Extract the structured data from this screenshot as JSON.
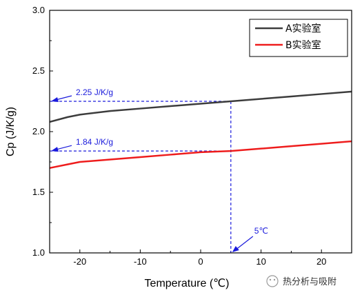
{
  "chart_data": {
    "type": "line",
    "xlabel": "Temperature (℃)",
    "ylabel": "Cp (J/K/g)",
    "xlim": [
      -25,
      25
    ],
    "ylim": [
      1.0,
      3.0
    ],
    "xticks": [
      -20,
      -10,
      0,
      10,
      20
    ],
    "yticks": [
      1.0,
      1.5,
      2.0,
      2.5,
      3.0
    ],
    "ytick_labels": [
      "1.0",
      "1.5",
      "2.0",
      "2.5",
      "3.0"
    ],
    "x": [
      -25,
      -22,
      -20,
      -15,
      -10,
      -5,
      0,
      5,
      10,
      15,
      20,
      25
    ],
    "series": [
      {
        "name": "A实验室",
        "color": "#3c3c3c",
        "values": [
          2.08,
          2.12,
          2.14,
          2.17,
          2.19,
          2.21,
          2.23,
          2.25,
          2.27,
          2.29,
          2.31,
          2.33
        ]
      },
      {
        "name": "B实验室",
        "color": "#ee1c1c",
        "values": [
          1.7,
          1.73,
          1.75,
          1.77,
          1.79,
          1.81,
          1.83,
          1.84,
          1.86,
          1.88,
          1.9,
          1.92
        ]
      }
    ],
    "annotations": [
      {
        "text": "2.25 J/K/g",
        "x": 5,
        "y": 2.25,
        "type": "horizontal-dashed-to-y-axis"
      },
      {
        "text": "1.84 J/K/g",
        "x": 5,
        "y": 1.84,
        "type": "horizontal-dashed-to-y-axis"
      },
      {
        "text": "5℃",
        "x": 5,
        "y": 1.0,
        "type": "vertical-dashed-to-x-axis"
      }
    ],
    "annotation_color": "#1a1adc",
    "legend_position": "top-right",
    "grid": false
  },
  "watermark": {
    "text": "热分析与吸附"
  }
}
